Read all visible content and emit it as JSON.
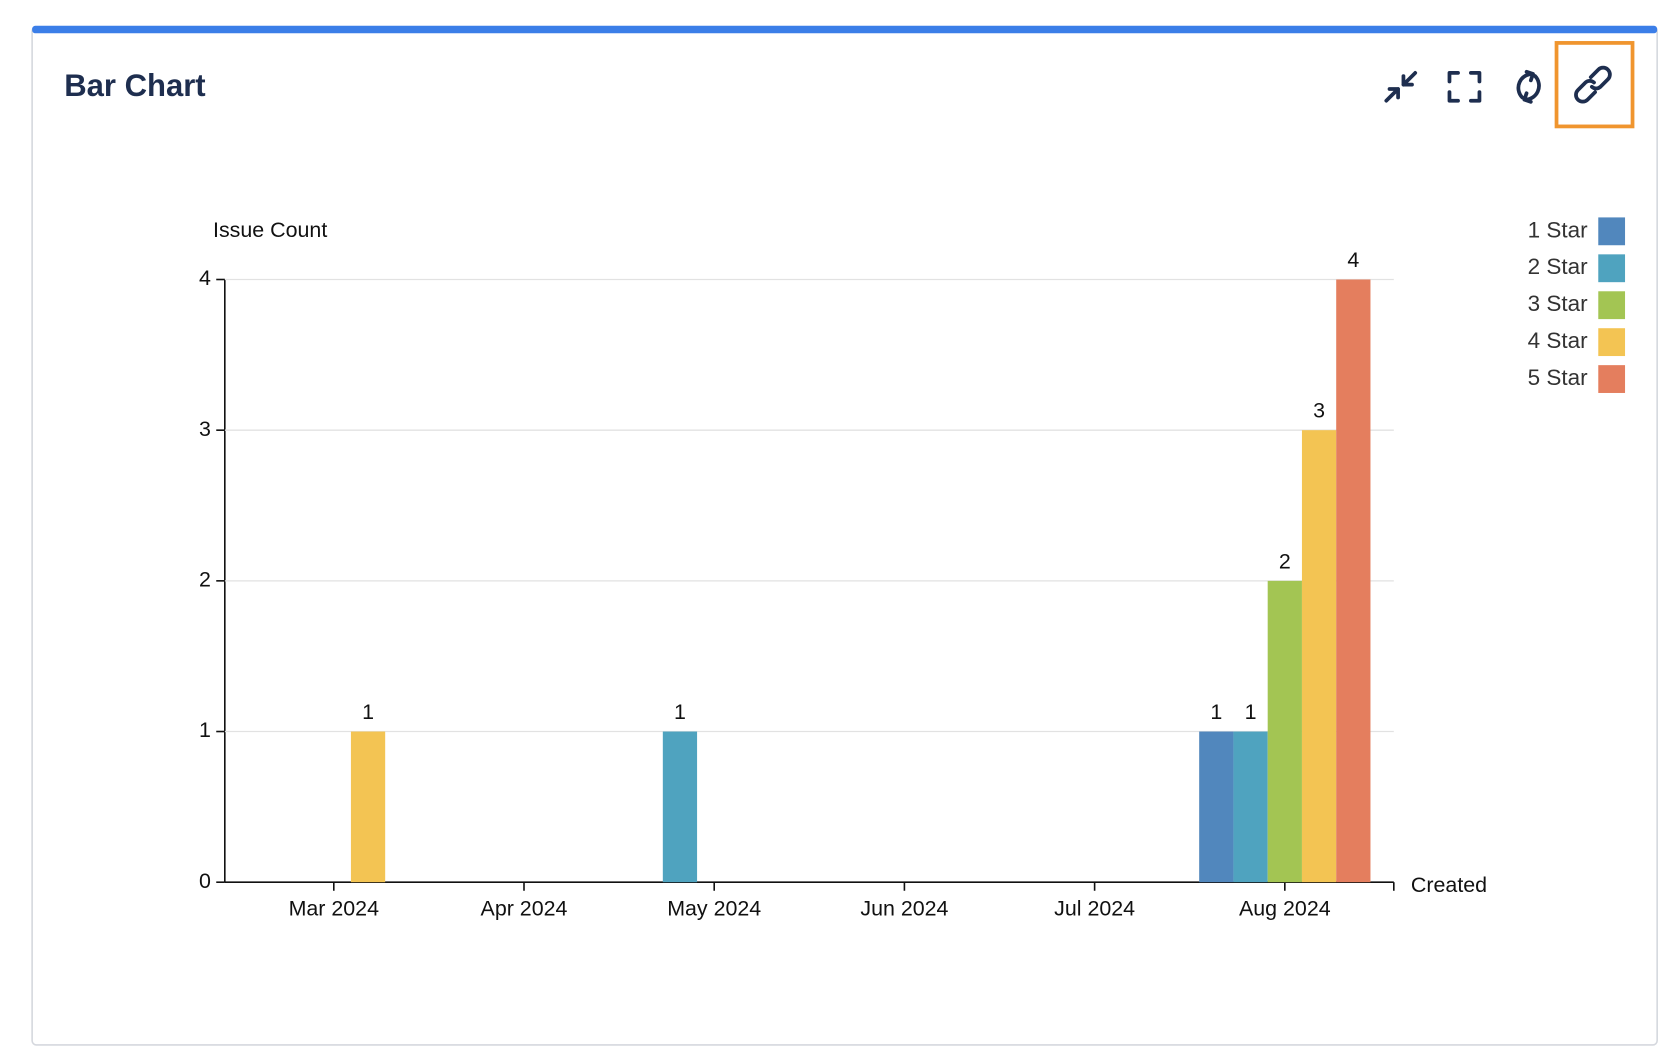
{
  "chart_data": {
    "type": "bar",
    "title": "Bar Chart",
    "y_label": "Issue Count",
    "x_label": "Created",
    "categories": [
      "Mar 2024",
      "Apr 2024",
      "May 2024",
      "Jun 2024",
      "Jul 2024",
      "Aug 2024"
    ],
    "series": [
      {
        "name": "1 Star",
        "color": "#5187bd",
        "values": [
          null,
          null,
          null,
          null,
          null,
          1
        ]
      },
      {
        "name": "2 Star",
        "color": "#4fa3bf",
        "values": [
          null,
          null,
          1,
          null,
          null,
          1
        ]
      },
      {
        "name": "3 Star",
        "color": "#a3c553",
        "values": [
          null,
          null,
          null,
          null,
          null,
          2
        ]
      },
      {
        "name": "4 Star",
        "color": "#f3c453",
        "values": [
          1,
          null,
          null,
          null,
          null,
          3
        ]
      },
      {
        "name": "5 Star",
        "color": "#e47e5e",
        "values": [
          null,
          null,
          null,
          null,
          null,
          4
        ]
      }
    ],
    "ylim": [
      0,
      4
    ],
    "yticks": [
      0,
      1,
      2,
      3,
      4
    ],
    "grid": true
  }
}
